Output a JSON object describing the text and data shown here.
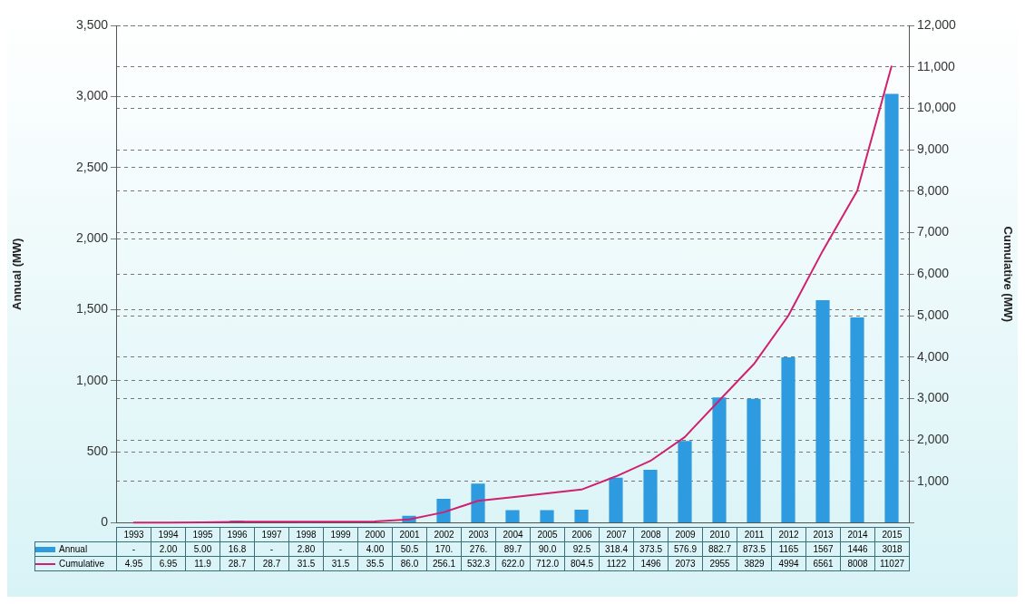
{
  "chart_data": {
    "type": "bar",
    "ylabel": "Annual (MW)",
    "y2label": "Cumulative (MW)",
    "categories": [
      "1993",
      "1994",
      "1995",
      "1996",
      "1997",
      "1998",
      "1999",
      "2000",
      "2001",
      "2002",
      "2003",
      "2004",
      "2005",
      "2006",
      "2007",
      "2008",
      "2009",
      "2010",
      "2011",
      "2012",
      "2013",
      "2014",
      "2015"
    ],
    "series": [
      {
        "name": "Annual",
        "color": "#2e9be0",
        "values": [
          null,
          2.0,
          5.0,
          16.8,
          null,
          2.8,
          null,
          4.0,
          50.5,
          170,
          276,
          89.7,
          90.0,
          92.5,
          318.4,
          373.5,
          576.9,
          882.7,
          873.5,
          1165,
          1567,
          1446,
          3018
        ],
        "value_labels": [
          "-",
          "2.00",
          "5.00",
          "16.8",
          "-",
          "2.80",
          "-",
          "4.00",
          "50.5",
          "170.",
          "276.",
          "89.7",
          "90.0",
          "92.5",
          "318.4",
          "373.5",
          "576.9",
          "882.7",
          "873.5",
          "1165",
          "1567",
          "1446",
          "3018"
        ]
      },
      {
        "name": "Cumulative",
        "type": "line",
        "axis": "y2",
        "color": "#d0216e",
        "values": [
          4.95,
          6.95,
          11.9,
          28.7,
          28.7,
          31.5,
          31.5,
          35.5,
          86.0,
          256.1,
          532.3,
          622.0,
          712.0,
          804.5,
          1122,
          1496,
          2073,
          2955,
          3829,
          4994,
          6561,
          8008,
          11027
        ],
        "value_labels": [
          "4.95",
          "6.95",
          "11.9",
          "28.7",
          "28.7",
          "31.5",
          "31.5",
          "35.5",
          "86.0",
          "256.1",
          "532.3",
          "622.0",
          "712.0",
          "804.5",
          "1122",
          "1496",
          "2073",
          "2955",
          "3829",
          "4994",
          "6561",
          "8008",
          "11027"
        ]
      }
    ],
    "ylim": [
      0,
      3500
    ],
    "yticks": [
      0,
      500,
      {
        "value": 1000,
        "label": "1,000"
      },
      {
        "value": 1500,
        "label": "1,500"
      },
      {
        "value": 2000,
        "label": "2,000"
      },
      {
        "value": 2500,
        "label": "2,500"
      },
      {
        "value": 3000,
        "label": "3,000"
      },
      {
        "value": 3500,
        "label": "3,500"
      }
    ],
    "y2lim": [
      0,
      12000
    ],
    "y2ticks": [
      {
        "value": 0,
        "label": null
      },
      {
        "value": 1000,
        "label": "1,000"
      },
      {
        "value": 2000,
        "label": "2,000"
      },
      {
        "value": 3000,
        "label": "3,000"
      },
      {
        "value": 4000,
        "label": "4,000"
      },
      {
        "value": 5000,
        "label": "5,000"
      },
      {
        "value": 6000,
        "label": "6,000"
      },
      {
        "value": 7000,
        "label": "7,000"
      },
      {
        "value": 8000,
        "label": "8,000"
      },
      {
        "value": 9000,
        "label": "9,000"
      },
      {
        "value": 10000,
        "label": "10,000"
      },
      {
        "value": 11000,
        "label": "11,000"
      },
      {
        "value": 12000,
        "label": "12,000"
      }
    ],
    "grid": true,
    "legend": "bottom",
    "marker": "none",
    "line_style": "solid"
  }
}
